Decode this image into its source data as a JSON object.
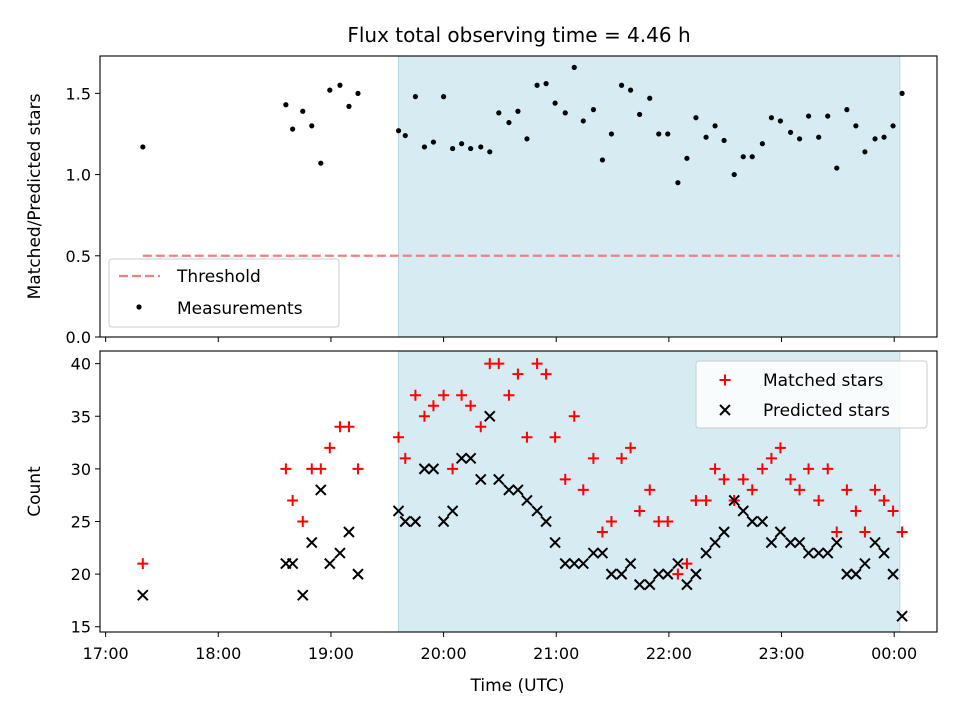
{
  "figure": {
    "title": "Flux total observing time = 4.46 h",
    "background": "#ffffff",
    "shade_color": "#add8e6",
    "threshold_color": "#f08080"
  },
  "chart_data": [
    {
      "type": "scatter",
      "panel": "top",
      "ylabel": "Matched/Predicted stars",
      "xlabel": "",
      "xlim": [
        16.95,
        24.38
      ],
      "ylim": [
        0.0,
        1.73
      ],
      "xticks": [
        17,
        18,
        19,
        20,
        21,
        22,
        23,
        24
      ],
      "xtick_labels": [],
      "yticks": [
        0.0,
        0.5,
        1.0,
        1.5
      ],
      "ytick_labels": [
        "0.0",
        "0.5",
        "1.0",
        "1.5"
      ],
      "shaded_region": [
        19.6,
        24.05
      ],
      "legend_position": "lower-left",
      "threshold": {
        "name": "Threshold",
        "value": 0.5,
        "x_range": [
          17.33,
          24.05
        ],
        "style": "dashed",
        "color": "#f08080"
      },
      "series": [
        {
          "name": "Measurements",
          "marker": "dot",
          "color": "#000000",
          "points": [
            [
              17.33,
              1.17
            ],
            [
              18.6,
              1.43
            ],
            [
              18.66,
              1.28
            ],
            [
              18.75,
              1.39
            ],
            [
              18.83,
              1.3
            ],
            [
              18.91,
              1.07
            ],
            [
              18.99,
              1.52
            ],
            [
              19.08,
              1.55
            ],
            [
              19.16,
              1.42
            ],
            [
              19.24,
              1.5
            ],
            [
              19.6,
              1.27
            ],
            [
              19.66,
              1.24
            ],
            [
              19.75,
              1.48
            ],
            [
              19.83,
              1.17
            ],
            [
              19.91,
              1.2
            ],
            [
              20.0,
              1.48
            ],
            [
              20.08,
              1.16
            ],
            [
              20.16,
              1.19
            ],
            [
              20.24,
              1.16
            ],
            [
              20.33,
              1.17
            ],
            [
              20.41,
              1.14
            ],
            [
              20.49,
              1.38
            ],
            [
              20.58,
              1.32
            ],
            [
              20.66,
              1.39
            ],
            [
              20.74,
              1.22
            ],
            [
              20.83,
              1.55
            ],
            [
              20.91,
              1.56
            ],
            [
              20.99,
              1.44
            ],
            [
              21.08,
              1.38
            ],
            [
              21.16,
              1.66
            ],
            [
              21.24,
              1.33
            ],
            [
              21.33,
              1.4
            ],
            [
              21.41,
              1.09
            ],
            [
              21.49,
              1.25
            ],
            [
              21.58,
              1.55
            ],
            [
              21.66,
              1.52
            ],
            [
              21.74,
              1.37
            ],
            [
              21.83,
              1.47
            ],
            [
              21.91,
              1.25
            ],
            [
              21.99,
              1.25
            ],
            [
              22.08,
              0.95
            ],
            [
              22.16,
              1.1
            ],
            [
              22.24,
              1.35
            ],
            [
              22.33,
              1.23
            ],
            [
              22.41,
              1.3
            ],
            [
              22.49,
              1.21
            ],
            [
              22.58,
              1.0
            ],
            [
              22.66,
              1.11
            ],
            [
              22.74,
              1.11
            ],
            [
              22.83,
              1.19
            ],
            [
              22.91,
              1.35
            ],
            [
              22.99,
              1.33
            ],
            [
              23.08,
              1.26
            ],
            [
              23.16,
              1.22
            ],
            [
              23.24,
              1.36
            ],
            [
              23.33,
              1.23
            ],
            [
              23.41,
              1.36
            ],
            [
              23.49,
              1.04
            ],
            [
              23.58,
              1.4
            ],
            [
              23.66,
              1.3
            ],
            [
              23.74,
              1.14
            ],
            [
              23.83,
              1.22
            ],
            [
              23.91,
              1.23
            ],
            [
              23.99,
              1.3
            ],
            [
              24.07,
              1.5
            ]
          ]
        }
      ]
    },
    {
      "type": "scatter",
      "panel": "bottom",
      "xlabel": "Time (UTC)",
      "ylabel": "Count",
      "xlim": [
        16.95,
        24.38
      ],
      "ylim": [
        14.5,
        41.2
      ],
      "xticks": [
        17,
        18,
        19,
        20,
        21,
        22,
        23,
        24
      ],
      "xtick_labels": [
        "17:00",
        "18:00",
        "19:00",
        "20:00",
        "21:00",
        "22:00",
        "23:00",
        "00:00"
      ],
      "yticks": [
        15,
        20,
        25,
        30,
        35,
        40
      ],
      "ytick_labels": [
        "15",
        "20",
        "25",
        "30",
        "35",
        "40"
      ],
      "shaded_region": [
        19.6,
        24.05
      ],
      "legend_position": "top-right",
      "series": [
        {
          "name": "Matched stars",
          "marker": "plus",
          "color": "#ff0000",
          "points": [
            [
              17.33,
              21
            ],
            [
              18.6,
              30
            ],
            [
              18.66,
              27
            ],
            [
              18.75,
              25
            ],
            [
              18.83,
              30
            ],
            [
              18.91,
              30
            ],
            [
              18.99,
              32
            ],
            [
              19.08,
              34
            ],
            [
              19.16,
              34
            ],
            [
              19.24,
              30
            ],
            [
              19.6,
              33
            ],
            [
              19.66,
              31
            ],
            [
              19.75,
              37
            ],
            [
              19.83,
              35
            ],
            [
              19.91,
              36
            ],
            [
              20.0,
              37
            ],
            [
              20.08,
              30
            ],
            [
              20.16,
              37
            ],
            [
              20.24,
              36
            ],
            [
              20.33,
              34
            ],
            [
              20.41,
              40
            ],
            [
              20.49,
              40
            ],
            [
              20.58,
              37
            ],
            [
              20.66,
              39
            ],
            [
              20.74,
              33
            ],
            [
              20.83,
              40
            ],
            [
              20.91,
              39
            ],
            [
              20.99,
              33
            ],
            [
              21.08,
              29
            ],
            [
              21.16,
              35
            ],
            [
              21.24,
              28
            ],
            [
              21.33,
              31
            ],
            [
              21.41,
              24
            ],
            [
              21.49,
              25
            ],
            [
              21.58,
              31
            ],
            [
              21.66,
              32
            ],
            [
              21.74,
              26
            ],
            [
              21.83,
              28
            ],
            [
              21.91,
              25
            ],
            [
              21.99,
              25
            ],
            [
              22.08,
              20
            ],
            [
              22.16,
              21
            ],
            [
              22.24,
              27
            ],
            [
              22.33,
              27
            ],
            [
              22.41,
              30
            ],
            [
              22.49,
              29
            ],
            [
              22.58,
              27
            ],
            [
              22.66,
              29
            ],
            [
              22.74,
              28
            ],
            [
              22.83,
              30
            ],
            [
              22.91,
              31
            ],
            [
              22.99,
              32
            ],
            [
              23.08,
              29
            ],
            [
              23.16,
              28
            ],
            [
              23.24,
              30
            ],
            [
              23.33,
              27
            ],
            [
              23.41,
              30
            ],
            [
              23.49,
              24
            ],
            [
              23.58,
              28
            ],
            [
              23.66,
              26
            ],
            [
              23.74,
              24
            ],
            [
              23.83,
              28
            ],
            [
              23.91,
              27
            ],
            [
              23.99,
              26
            ],
            [
              24.07,
              24
            ]
          ]
        },
        {
          "name": "Predicted stars",
          "marker": "x",
          "color": "#000000",
          "points": [
            [
              17.33,
              18
            ],
            [
              18.6,
              21
            ],
            [
              18.66,
              21
            ],
            [
              18.75,
              18
            ],
            [
              18.83,
              23
            ],
            [
              18.91,
              28
            ],
            [
              18.99,
              21
            ],
            [
              19.08,
              22
            ],
            [
              19.16,
              24
            ],
            [
              19.24,
              20
            ],
            [
              19.6,
              26
            ],
            [
              19.66,
              25
            ],
            [
              19.75,
              25
            ],
            [
              19.83,
              30
            ],
            [
              19.91,
              30
            ],
            [
              20.0,
              25
            ],
            [
              20.08,
              26
            ],
            [
              20.16,
              31
            ],
            [
              20.24,
              31
            ],
            [
              20.33,
              29
            ],
            [
              20.41,
              35
            ],
            [
              20.49,
              29
            ],
            [
              20.58,
              28
            ],
            [
              20.66,
              28
            ],
            [
              20.74,
              27
            ],
            [
              20.83,
              26
            ],
            [
              20.91,
              25
            ],
            [
              20.99,
              23
            ],
            [
              21.08,
              21
            ],
            [
              21.16,
              21
            ],
            [
              21.24,
              21
            ],
            [
              21.33,
              22
            ],
            [
              21.41,
              22
            ],
            [
              21.49,
              20
            ],
            [
              21.58,
              20
            ],
            [
              21.66,
              21
            ],
            [
              21.74,
              19
            ],
            [
              21.83,
              19
            ],
            [
              21.91,
              20
            ],
            [
              21.99,
              20
            ],
            [
              22.08,
              21
            ],
            [
              22.16,
              19
            ],
            [
              22.24,
              20
            ],
            [
              22.33,
              22
            ],
            [
              22.41,
              23
            ],
            [
              22.49,
              24
            ],
            [
              22.58,
              27
            ],
            [
              22.66,
              26
            ],
            [
              22.74,
              25
            ],
            [
              22.83,
              25
            ],
            [
              22.91,
              23
            ],
            [
              22.99,
              24
            ],
            [
              23.08,
              23
            ],
            [
              23.16,
              23
            ],
            [
              23.24,
              22
            ],
            [
              23.33,
              22
            ],
            [
              23.41,
              22
            ],
            [
              23.49,
              23
            ],
            [
              23.58,
              20
            ],
            [
              23.66,
              20
            ],
            [
              23.74,
              21
            ],
            [
              23.83,
              23
            ],
            [
              23.91,
              22
            ],
            [
              23.99,
              20
            ],
            [
              24.07,
              16
            ]
          ]
        }
      ]
    }
  ]
}
